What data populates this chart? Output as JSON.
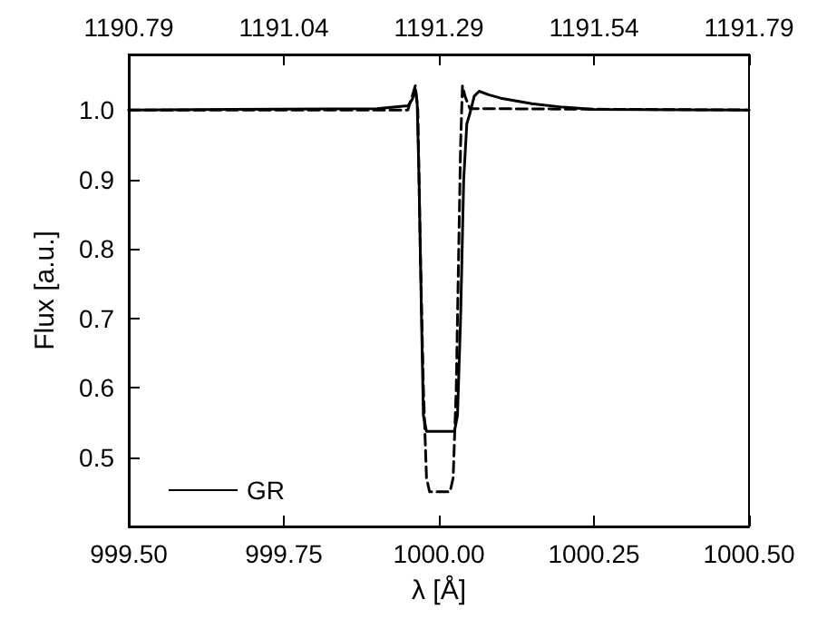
{
  "chart_data": {
    "type": "line",
    "xlabel": "λ [Å]",
    "ylabel": "Flux [a.u.]",
    "xlim": [
      999.5,
      1000.5
    ],
    "xticks": [
      {
        "value": 999.5,
        "label": "999.50"
      },
      {
        "value": 999.75,
        "label": "999.75"
      },
      {
        "value": 1000.0,
        "label": "1000.00"
      },
      {
        "value": 1000.25,
        "label": "1000.25"
      },
      {
        "value": 1000.5,
        "label": "1000.50"
      }
    ],
    "x2lim": [
      1190.79,
      1191.79
    ],
    "x2ticks": [
      1190.79,
      1191.04,
      1191.29,
      1191.54,
      1191.79
    ],
    "ylim": [
      0.4,
      1.08
    ],
    "yticks": [
      {
        "value": 0.5,
        "label": "0.5"
      },
      {
        "value": 0.6,
        "label": "0.6"
      },
      {
        "value": 0.7,
        "label": "0.7"
      },
      {
        "value": 0.8,
        "label": "0.8"
      },
      {
        "value": 0.9,
        "label": "0.9"
      },
      {
        "value": 1.0,
        "label": "1.0"
      }
    ],
    "grid": false,
    "legend": "bottom left",
    "marker": "none",
    "series": [
      {
        "name": "GR",
        "color": "#000000",
        "line_style": "solid",
        "x": [
          999.5,
          999.9,
          999.95,
          999.957,
          999.962,
          999.965,
          999.968,
          999.972,
          999.975,
          999.98,
          1000.025,
          1000.03,
          1000.035,
          1000.04,
          1000.045,
          1000.05,
          1000.057,
          1000.065,
          1000.08,
          1000.1,
          1000.15,
          1000.2,
          1000.25,
          1000.5
        ],
        "values": [
          1.0,
          1.002,
          1.006,
          1.015,
          1.03,
          1.01,
          0.9,
          0.7,
          0.56,
          0.537,
          0.537,
          0.56,
          0.7,
          0.9,
          0.98,
          0.995,
          1.02,
          1.027,
          1.022,
          1.017,
          1.009,
          1.004,
          1.001,
          1.0
        ]
      },
      {
        "color": "#000000",
        "line_style": "dashed",
        "x": [
          999.5,
          999.95,
          999.957,
          999.962,
          999.966,
          999.97,
          999.975,
          999.98,
          999.985,
          1000.018,
          1000.023,
          1000.028,
          1000.032,
          1000.035,
          1000.038,
          1000.042,
          1000.05,
          1000.5
        ],
        "values": [
          1.0,
          1.0,
          1.02,
          1.035,
          1.0,
          0.8,
          0.6,
          0.47,
          0.45,
          0.45,
          0.47,
          0.6,
          0.8,
          0.95,
          1.035,
          1.02,
          1.002,
          1.0
        ]
      }
    ]
  }
}
